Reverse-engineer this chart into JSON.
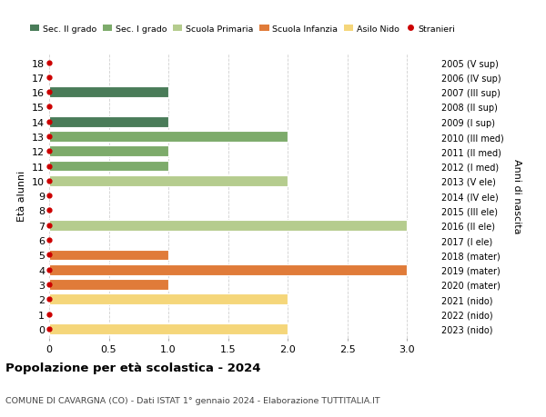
{
  "title": "Popolazione per età scolastica - 2024",
  "subtitle": "COMUNE DI CAVARGNA (CO) - Dati ISTAT 1° gennaio 2024 - Elaborazione TUTTITALIA.IT",
  "ylabel_left": "Età alunni",
  "ylabel_right": "Anni di nascita",
  "xlim": [
    0,
    3.25
  ],
  "xticks": [
    0,
    0.5,
    1.0,
    1.5,
    2.0,
    2.5,
    3.0
  ],
  "xtick_labels": [
    "0",
    "0.5",
    "1.0",
    "1.5",
    "2.0",
    "2.5",
    "3.0"
  ],
  "ages": [
    18,
    17,
    16,
    15,
    14,
    13,
    12,
    11,
    10,
    9,
    8,
    7,
    6,
    5,
    4,
    3,
    2,
    1,
    0
  ],
  "right_labels": [
    "2005 (V sup)",
    "2006 (IV sup)",
    "2007 (III sup)",
    "2008 (II sup)",
    "2009 (I sup)",
    "2010 (III med)",
    "2011 (II med)",
    "2012 (I med)",
    "2013 (V ele)",
    "2014 (IV ele)",
    "2015 (III ele)",
    "2016 (II ele)",
    "2017 (I ele)",
    "2018 (mater)",
    "2019 (mater)",
    "2020 (mater)",
    "2021 (nido)",
    "2022 (nido)",
    "2023 (nido)"
  ],
  "bar_values": [
    0,
    0,
    1,
    0,
    1,
    2,
    1,
    1,
    2,
    0,
    0,
    3,
    0,
    1,
    3,
    1,
    2,
    0,
    2
  ],
  "bar_colors": [
    "#4a7c59",
    "#4a7c59",
    "#4a7c59",
    "#4a7c59",
    "#4a7c59",
    "#7dab6b",
    "#7dab6b",
    "#7dab6b",
    "#b5cc8e",
    "#b5cc8e",
    "#b5cc8e",
    "#b5cc8e",
    "#b5cc8e",
    "#e07b39",
    "#e07b39",
    "#e07b39",
    "#f5d67a",
    "#f5d67a",
    "#f5d67a"
  ],
  "dot_color": "#cc0000",
  "legend": [
    {
      "label": "Sec. II grado",
      "color": "#4a7c59",
      "type": "patch"
    },
    {
      "label": "Sec. I grado",
      "color": "#7dab6b",
      "type": "patch"
    },
    {
      "label": "Scuola Primaria",
      "color": "#b5cc8e",
      "type": "patch"
    },
    {
      "label": "Scuola Infanzia",
      "color": "#e07b39",
      "type": "patch"
    },
    {
      "label": "Asilo Nido",
      "color": "#f5d67a",
      "type": "patch"
    },
    {
      "label": "Stranieri",
      "color": "#cc0000",
      "type": "dot"
    }
  ],
  "bg_color": "#ffffff",
  "grid_color": "#d0d0d0",
  "bar_height": 0.72
}
